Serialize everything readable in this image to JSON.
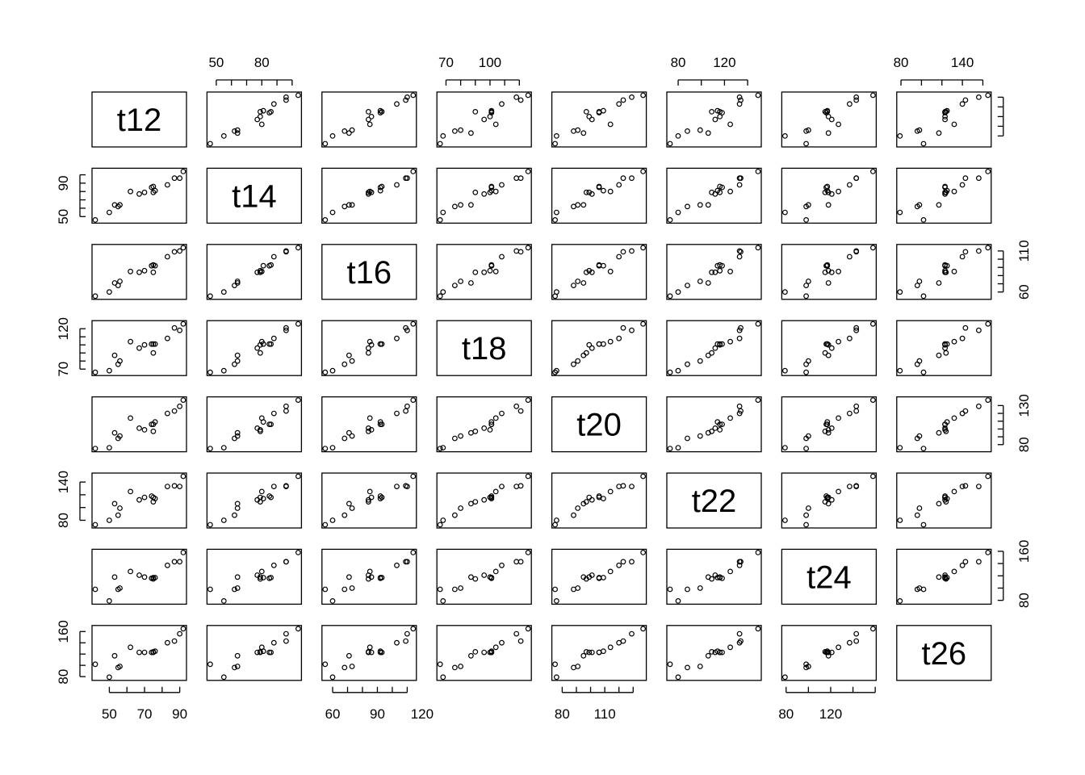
{
  "chart_data": {
    "type": "scatter",
    "layout": "scatterplot-matrix",
    "variables": [
      "t12",
      "t14",
      "t16",
      "t18",
      "t20",
      "t22",
      "t24",
      "t26"
    ],
    "observations": [
      [
        42,
        46,
        55,
        66,
        75,
        73,
        98,
        102
      ],
      [
        50,
        55,
        60,
        68,
        76,
        80,
        79,
        79
      ],
      [
        53,
        64,
        71,
        87,
        95,
        106,
        118,
        117
      ],
      [
        55,
        62,
        68,
        76,
        88,
        88,
        98,
        96
      ],
      [
        56,
        64,
        73,
        80,
        91,
        99,
        100,
        98
      ],
      [
        62,
        80,
        85,
        104,
        114,
        125,
        127,
        132
      ],
      [
        67,
        77,
        84,
        96,
        101,
        112,
        121,
        123
      ],
      [
        70,
        79,
        86,
        100,
        99,
        116,
        118,
        123
      ],
      [
        74,
        85,
        92,
        101,
        106,
        118,
        116,
        123
      ],
      [
        75,
        86,
        93,
        101,
        106,
        116,
        117,
        123
      ],
      [
        75,
        79,
        84,
        90,
        97,
        109,
        115,
        124
      ],
      [
        76,
        81,
        92,
        101,
        109,
        114,
        117,
        125
      ],
      [
        83,
        88,
        103,
        108,
        120,
        133,
        137,
        140
      ],
      [
        87,
        96,
        109,
        121,
        123,
        134,
        143,
        143
      ],
      [
        90,
        96,
        110,
        118,
        129,
        133,
        143,
        156
      ],
      [
        92,
        104,
        114,
        126,
        137,
        149,
        158,
        165
      ]
    ],
    "axes": [
      {
        "var": "t12",
        "range": [
          42,
          92
        ],
        "ticks": [
          50,
          60,
          70,
          80,
          90
        ],
        "labels": [
          50,
          70,
          90
        ]
      },
      {
        "var": "t14",
        "range": [
          46,
          104
        ],
        "ticks": [
          50,
          60,
          70,
          80,
          90,
          100
        ],
        "labels": [
          50,
          80
        ],
        "left_labels": [
          50,
          90
        ]
      },
      {
        "var": "t16",
        "range": [
          55,
          114
        ],
        "ticks": [
          60,
          70,
          80,
          90,
          100,
          110
        ],
        "labels": [
          60,
          90,
          120
        ],
        "right_labels": [
          60,
          110
        ]
      },
      {
        "var": "t18",
        "range": [
          66,
          126
        ],
        "ticks": [
          70,
          80,
          90,
          100,
          110,
          120
        ],
        "labels": [
          70,
          100
        ],
        "left_labels": [
          70,
          120
        ]
      },
      {
        "var": "t20",
        "range": [
          75,
          137
        ],
        "ticks": [
          80,
          90,
          100,
          110,
          120,
          130
        ],
        "labels": [
          80,
          110
        ],
        "right_labels": [
          80,
          130
        ]
      },
      {
        "var": "t22",
        "range": [
          73,
          149
        ],
        "ticks": [
          80,
          100,
          120,
          140
        ],
        "labels": [
          80,
          120
        ],
        "left_labels": [
          80,
          140
        ]
      },
      {
        "var": "t24",
        "range": [
          79,
          158
        ],
        "ticks": [
          80,
          100,
          120,
          140,
          160
        ],
        "labels": [
          80,
          120
        ],
        "right_labels": [
          80,
          160
        ]
      },
      {
        "var": "t26",
        "range": [
          79,
          165
        ],
        "ticks": [
          80,
          100,
          120,
          140,
          160
        ],
        "labels": [
          80,
          140
        ],
        "left_labels": [
          80,
          160
        ]
      }
    ],
    "top_axis_panels": [
      1,
      3,
      5,
      7
    ],
    "bottom_axis_panels": [
      0,
      2,
      4,
      6
    ],
    "left_axis_panels": [
      1,
      3,
      5,
      7
    ],
    "right_axis_panels": [
      0,
      2,
      4,
      6
    ],
    "title": "",
    "grid": false,
    "legend": "none"
  }
}
